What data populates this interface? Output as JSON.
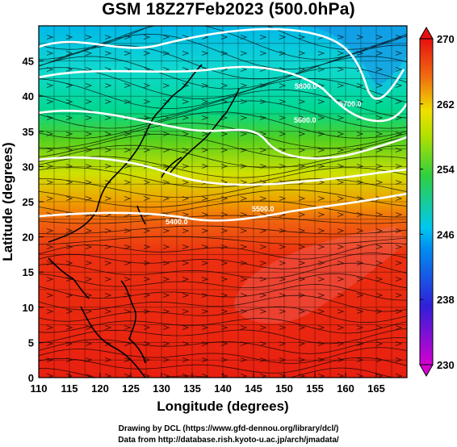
{
  "title": "GSM 18Z27Feb2023 (500.0hPa)",
  "x_axis": {
    "label": "Longitude (degrees)",
    "range": [
      110,
      170
    ],
    "ticks": [
      110,
      115,
      120,
      125,
      130,
      135,
      140,
      145,
      150,
      155,
      160,
      165
    ]
  },
  "y_axis": {
    "label": "Latitude  (degrees)",
    "range": [
      0,
      50
    ],
    "ticks": [
      0,
      5,
      10,
      15,
      20,
      25,
      30,
      35,
      40,
      45
    ]
  },
  "colorbar": {
    "ticks": [
      230,
      238,
      246,
      254,
      262,
      270
    ],
    "range": [
      230,
      270
    ],
    "colors": [
      "#d400d0",
      "#3020d8",
      "#00c8f0",
      "#30d040",
      "#f0e000",
      "#e81010"
    ]
  },
  "contours": [
    {
      "label": "5400.0"
    },
    {
      "label": "5500.0"
    },
    {
      "label": "5600.0"
    },
    {
      "label": "5700.0"
    },
    {
      "label": "5800.0"
    }
  ],
  "credits": {
    "line1": "Drawing by DCL (https://www.gfd-dennou.org/library/dcl/)",
    "line2": "Data from http://database.rish.kyoto-u.ac.jp/arch/jmadata/"
  }
}
